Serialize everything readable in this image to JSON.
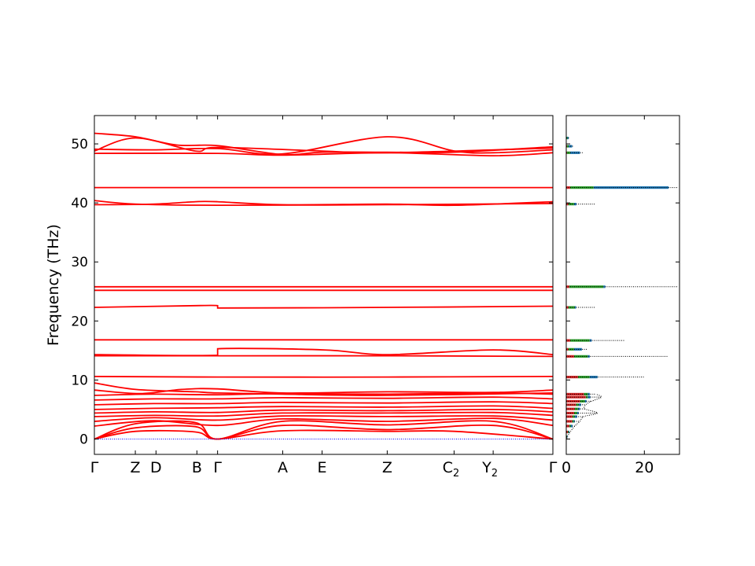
{
  "chart_data": [
    {
      "type": "line",
      "panel": "band-structure",
      "ylabel": "Frequency (THz)",
      "ylim": [
        -2.6,
        54.8
      ],
      "yticks": [
        0,
        10,
        20,
        30,
        40,
        50
      ],
      "kpoints": [
        {
          "label": "Γ",
          "sub": "",
          "x": 0.0
        },
        {
          "label": "Z",
          "sub": "",
          "x": 0.893
        },
        {
          "label": "D",
          "sub": "",
          "x": 1.344
        },
        {
          "label": "B",
          "sub": "",
          "x": 2.236
        },
        {
          "label": "Γ",
          "sub": "",
          "x": 2.687
        },
        {
          "label": "A",
          "sub": "",
          "x": 4.108
        },
        {
          "label": "E",
          "sub": "",
          "x": 4.966
        },
        {
          "label": "Z",
          "sub": "",
          "x": 6.387
        },
        {
          "label": "C",
          "sub": "2",
          "x": 7.845
        },
        {
          "label": "Y",
          "sub": "2",
          "x": 8.698
        },
        {
          "label": "Γ",
          "sub": "",
          "x": 10.0
        }
      ],
      "xlim": [
        0,
        10
      ],
      "line_color": "#ff0000",
      "zero_line_color": "#0000ff",
      "bands": [
        [
          [
            0,
            0
          ],
          [
            0.9,
            1.3
          ],
          [
            2.2,
            1.2
          ],
          [
            2.687,
            0
          ],
          [
            4.1,
            1.4
          ],
          [
            6.39,
            1.3
          ],
          [
            7.85,
            1.3
          ],
          [
            10,
            0
          ]
        ],
        [
          [
            0,
            0
          ],
          [
            0.9,
            1.9
          ],
          [
            2.2,
            2.1
          ],
          [
            2.687,
            0
          ],
          [
            4.1,
            2.3
          ],
          [
            6.39,
            1.6
          ],
          [
            8.7,
            2.3
          ],
          [
            10,
            0
          ]
        ],
        [
          [
            0,
            0
          ],
          [
            0.9,
            2.6
          ],
          [
            2.2,
            2.8
          ],
          [
            2.687,
            0
          ],
          [
            4.1,
            3.0
          ],
          [
            6.39,
            2.4
          ],
          [
            8.7,
            3.0
          ],
          [
            10,
            0
          ]
        ],
        [
          [
            0,
            2.2
          ],
          [
            1.3,
            3.1
          ],
          [
            2.687,
            2.3
          ],
          [
            4.1,
            3.4
          ],
          [
            6.39,
            3.0
          ],
          [
            8.7,
            3.5
          ],
          [
            10,
            2.3
          ]
        ],
        [
          [
            0,
            3.0
          ],
          [
            1.3,
            3.6
          ],
          [
            2.687,
            3.2
          ],
          [
            4.1,
            3.9
          ],
          [
            6.39,
            3.8
          ],
          [
            8.7,
            3.9
          ],
          [
            10,
            3.2
          ]
        ],
        [
          [
            0,
            3.8
          ],
          [
            1.3,
            4.0
          ],
          [
            2.687,
            3.9
          ],
          [
            4.1,
            4.4
          ],
          [
            6.39,
            4.4
          ],
          [
            8.7,
            4.5
          ],
          [
            10,
            4.0
          ]
        ],
        [
          [
            0,
            4.4
          ],
          [
            1.3,
            4.6
          ],
          [
            2.687,
            4.5
          ],
          [
            4.1,
            4.9
          ],
          [
            6.39,
            4.8
          ],
          [
            8.7,
            5.0
          ],
          [
            10,
            4.6
          ]
        ],
        [
          [
            0,
            5.0
          ],
          [
            1.3,
            5.2
          ],
          [
            2.687,
            5.3
          ],
          [
            4.1,
            5.5
          ],
          [
            6.39,
            5.4
          ],
          [
            8.7,
            5.6
          ],
          [
            10,
            5.2
          ]
        ],
        [
          [
            0,
            5.8
          ],
          [
            1.3,
            6.0
          ],
          [
            2.687,
            6.0
          ],
          [
            4.1,
            6.2
          ],
          [
            6.39,
            6.1
          ],
          [
            8.7,
            6.3
          ],
          [
            10,
            6.0
          ]
        ],
        [
          [
            0,
            6.6
          ],
          [
            1.3,
            6.8
          ],
          [
            2.687,
            6.8
          ],
          [
            4.1,
            7.0
          ],
          [
            6.39,
            6.9
          ],
          [
            8.7,
            7.1
          ],
          [
            10,
            6.8
          ]
        ],
        [
          [
            0,
            7.4
          ],
          [
            1.3,
            7.6
          ],
          [
            2.687,
            7.5
          ],
          [
            4.1,
            7.7
          ],
          [
            6.39,
            7.6
          ],
          [
            8.7,
            7.8
          ],
          [
            10,
            7.6
          ]
        ],
        [
          [
            0,
            8.3
          ],
          [
            1.0,
            7.7
          ],
          [
            1.9,
            8.4
          ],
          [
            2.687,
            8.5
          ],
          [
            4.1,
            7.8
          ],
          [
            6.39,
            8.0
          ],
          [
            8.7,
            7.9
          ],
          [
            10,
            8.3
          ]
        ],
        [
          [
            0,
            9.5
          ],
          [
            0.9,
            8.4
          ],
          [
            2.2,
            8.0
          ],
          [
            2.687,
            7.8
          ],
          [
            4.1,
            7.6
          ],
          [
            6.39,
            7.4
          ],
          [
            10,
            7.8
          ]
        ],
        [
          [
            0,
            10.6
          ],
          [
            2.687,
            10.5
          ],
          [
            6.39,
            10.5
          ],
          [
            10,
            10.6
          ]
        ],
        [
          [
            0,
            14.1
          ],
          [
            2.687,
            14.1
          ],
          [
            6.39,
            14.1
          ],
          [
            10,
            14.0
          ]
        ],
        [
          [
            0,
            14.3
          ],
          [
            2.687,
            14.2
          ],
          [
            2.687,
            15.3
          ],
          [
            5.0,
            15.1
          ],
          [
            6.39,
            14.3
          ],
          [
            8.7,
            15.1
          ],
          [
            10,
            14.3
          ]
        ],
        [
          [
            0,
            16.8
          ],
          [
            2.687,
            16.8
          ],
          [
            6.39,
            16.8
          ],
          [
            10,
            16.8
          ]
        ],
        [
          [
            0,
            22.3
          ],
          [
            2.2,
            22.6
          ],
          [
            2.687,
            22.6
          ],
          [
            2.687,
            22.2
          ],
          [
            6.39,
            22.3
          ],
          [
            10,
            22.5
          ]
        ],
        [
          [
            0,
            25.2
          ],
          [
            2.687,
            25.2
          ],
          [
            6.39,
            25.2
          ],
          [
            10,
            25.2
          ]
        ],
        [
          [
            0,
            25.8
          ],
          [
            2.687,
            25.8
          ],
          [
            6.39,
            25.8
          ],
          [
            10,
            25.8
          ]
        ],
        [
          [
            0,
            39.7
          ],
          [
            1.3,
            39.8
          ],
          [
            2.2,
            40.2
          ],
          [
            2.687,
            40.2
          ],
          [
            4.1,
            39.7
          ],
          [
            6.39,
            39.8
          ],
          [
            7.85,
            39.6
          ],
          [
            10,
            40.2
          ]
        ],
        [
          [
            0,
            40.4
          ],
          [
            0.9,
            39.8
          ],
          [
            2.687,
            39.6
          ],
          [
            6.39,
            39.7
          ],
          [
            10,
            39.9
          ]
        ],
        [
          [
            0,
            42.6
          ],
          [
            2.687,
            42.6
          ],
          [
            6.39,
            42.6
          ],
          [
            10,
            42.6
          ]
        ],
        [
          [
            0,
            48.4
          ],
          [
            2.687,
            48.4
          ],
          [
            4.1,
            48.1
          ],
          [
            6.39,
            48.5
          ],
          [
            8.7,
            48.0
          ],
          [
            10,
            48.5
          ]
        ],
        [
          [
            0,
            49.1
          ],
          [
            1.3,
            49.0
          ],
          [
            2.687,
            49.2
          ],
          [
            4.1,
            48.3
          ],
          [
            6.39,
            51.2
          ],
          [
            7.85,
            48.8
          ],
          [
            8.7,
            48.5
          ],
          [
            10,
            49.0
          ]
        ],
        [
          [
            0,
            51.8
          ],
          [
            0.9,
            51.2
          ],
          [
            1.8,
            49.8
          ],
          [
            2.687,
            49.7
          ],
          [
            4.1,
            48.2
          ],
          [
            4.966,
            48.6
          ],
          [
            6.39,
            48.6
          ],
          [
            7.85,
            48.6
          ],
          [
            10,
            49.5
          ]
        ],
        [
          [
            0,
            48.8
          ],
          [
            0.9,
            51.0
          ],
          [
            2.2,
            48.8
          ],
          [
            2.687,
            49.4
          ],
          [
            4.966,
            48.8
          ],
          [
            6.39,
            48.5
          ],
          [
            10,
            49.3
          ]
        ]
      ]
    },
    {
      "type": "area",
      "panel": "density-of-states",
      "xlim": [
        0,
        29
      ],
      "xticks": [
        0,
        20
      ],
      "ylim": [
        -2.6,
        54.8
      ],
      "total_color": "#000000",
      "fill_colors": [
        "#d62728",
        "#2ca02c",
        "#1f77b4",
        "#ff7f0e"
      ],
      "peaks": [
        {
          "f": 42.6,
          "total": 28.4,
          "parts": [
            1.0,
            7.0,
            26.2
          ]
        },
        {
          "f": 25.8,
          "total": 28.4,
          "parts": [
            0.8,
            9.5,
            10.0
          ]
        },
        {
          "f": 14.0,
          "total": 26.0,
          "parts": [
            2.0,
            5.5,
            6.0
          ]
        },
        {
          "f": 10.5,
          "total": 20.0,
          "parts": [
            3.0,
            6.0,
            8.0
          ]
        },
        {
          "f": 16.7,
          "total": 15.0,
          "parts": [
            1.0,
            6.0,
            6.5
          ]
        },
        {
          "f": 15.2,
          "total": 5.5,
          "parts": [
            0.5,
            2.0,
            4.0
          ]
        },
        {
          "f": 22.3,
          "total": 7.5,
          "parts": [
            0.5,
            2.2,
            2.5
          ]
        },
        {
          "f": 39.8,
          "total": 7.5,
          "parts": [
            0.5,
            2.0,
            2.6
          ]
        },
        {
          "f": 48.5,
          "total": 4.2,
          "parts": [
            0.2,
            1.0,
            3.5
          ]
        },
        {
          "f": 49.6,
          "total": 1.8,
          "parts": [
            0.2,
            0.6,
            1.5
          ]
        },
        {
          "f": 51.0,
          "total": 0.8,
          "parts": [
            0.1,
            0.3,
            0.6
          ]
        },
        {
          "f": 7.6,
          "total": 7.6,
          "parts": [
            4.5,
            5.5,
            6.0
          ]
        },
        {
          "f": 7.1,
          "total": 9.0,
          "parts": [
            5.0,
            5.5,
            6.2
          ]
        },
        {
          "f": 6.4,
          "total": 6.5,
          "parts": [
            3.5,
            4.8,
            5.2
          ]
        },
        {
          "f": 5.8,
          "total": 5.0,
          "parts": [
            2.5,
            3.2,
            3.8
          ]
        },
        {
          "f": 5.1,
          "total": 4.8,
          "parts": [
            2.2,
            3.0,
            3.5
          ]
        },
        {
          "f": 4.4,
          "total": 8.0,
          "parts": [
            2.0,
            2.8,
            3.2
          ]
        },
        {
          "f": 3.8,
          "total": 4.5,
          "parts": [
            1.6,
            2.2,
            2.8
          ]
        },
        {
          "f": 3.0,
          "total": 3.5,
          "parts": [
            1.5,
            1.9,
            2.2
          ]
        },
        {
          "f": 2.2,
          "total": 2.2,
          "parts": [
            0.8,
            1.2,
            1.6
          ]
        },
        {
          "f": 1.2,
          "total": 1.0,
          "parts": [
            0.4,
            0.6,
            0.8
          ]
        },
        {
          "f": 0.4,
          "total": 0.3,
          "parts": [
            0.1,
            0.2,
            0.25
          ]
        }
      ]
    }
  ]
}
